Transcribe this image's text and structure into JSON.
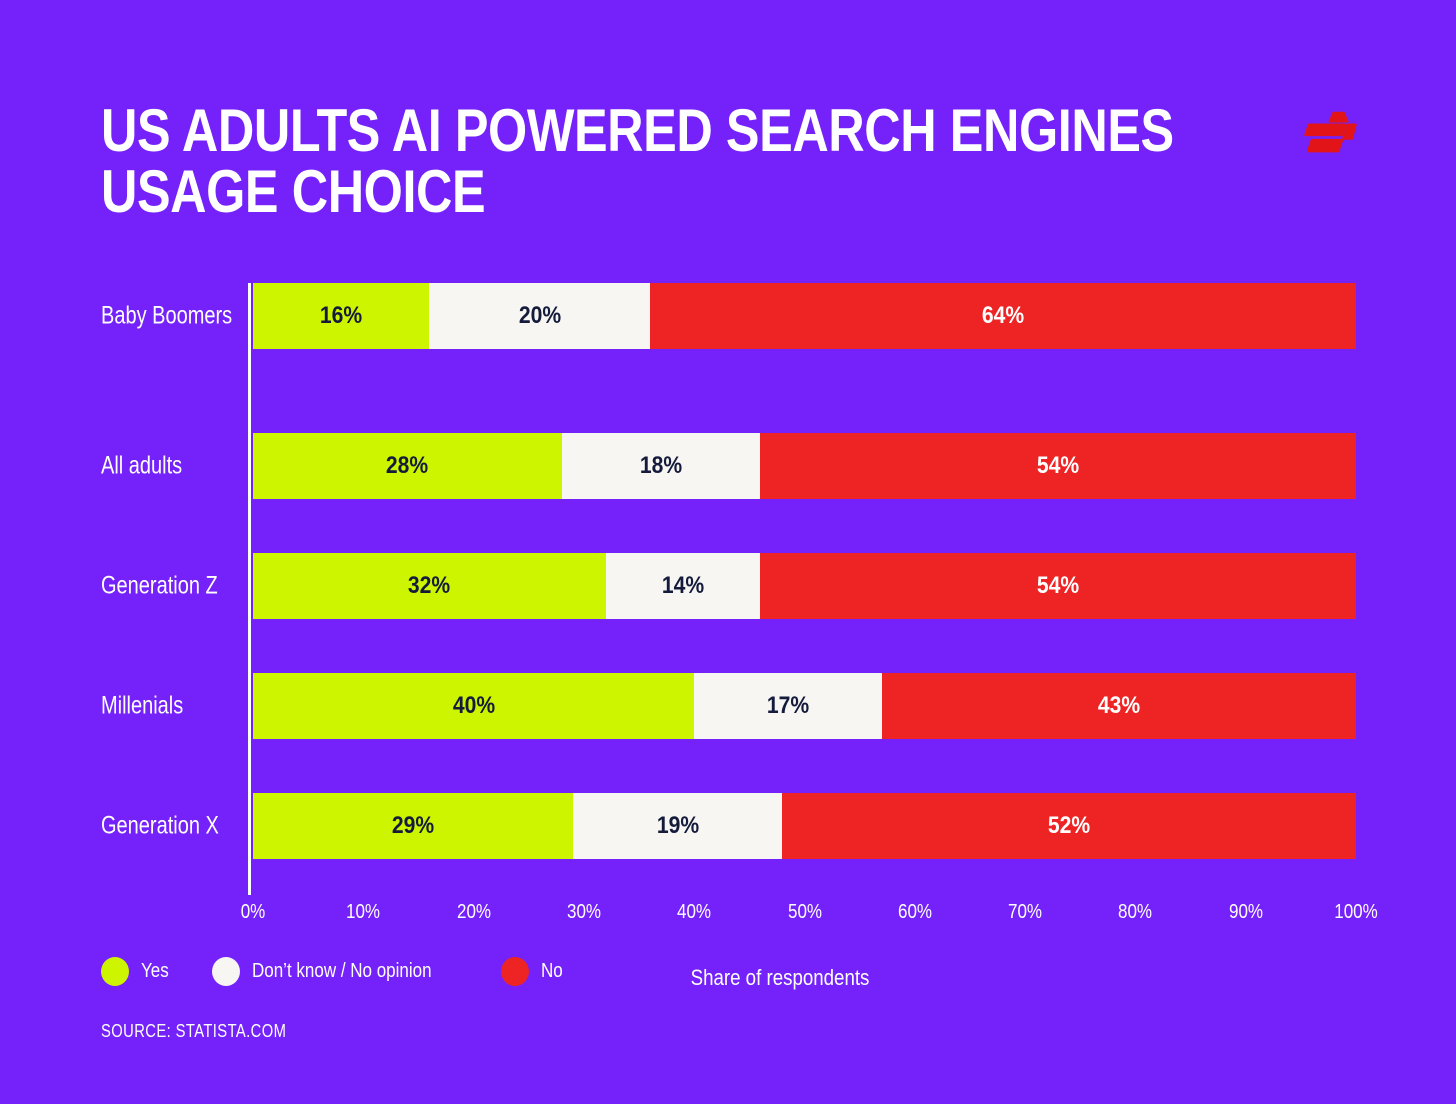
{
  "title": "US Adults AI powered search engines usage choice",
  "source": "Source: statista.com",
  "colors": {
    "background": "#7522FA",
    "yes": "#CDF500",
    "dont_know": "#F7F6F3",
    "no": "#EE2424",
    "bar_label_dark": "#141B3B",
    "bar_label_light": "#FFFFFF",
    "logo_red": "#E21418",
    "text": "#FFFFFF"
  },
  "chart_data": {
    "type": "bar",
    "orientation": "horizontal-stacked",
    "title": "US Adults AI powered search engines usage choice",
    "xlabel": "Share of respondents",
    "ylabel": "",
    "xlim": [
      0,
      100
    ],
    "grid": false,
    "legend_position": "bottom-left",
    "categories": [
      "All adults",
      "Generation Z",
      "Millenials",
      "Generation X",
      "Baby Boomers"
    ],
    "series": [
      {
        "name": "Yes",
        "color": "#CDF500",
        "label_color": "#141B3B",
        "values": [
          28,
          32,
          40,
          29,
          16
        ]
      },
      {
        "name": "Don’t know / No opinion",
        "color": "#F7F6F3",
        "label_color": "#141B3B",
        "values": [
          18,
          14,
          17,
          19,
          20
        ]
      },
      {
        "name": "No",
        "color": "#EE2424",
        "label_color": "#FFFFFF",
        "values": [
          54,
          54,
          43,
          52,
          64
        ]
      }
    ],
    "value_suffix": "%",
    "x_tick_labels": [
      "0%",
      "10%",
      "20%",
      "30%",
      "40%",
      "50%",
      "60%",
      "70%",
      "80%",
      "90%",
      "100%"
    ]
  }
}
